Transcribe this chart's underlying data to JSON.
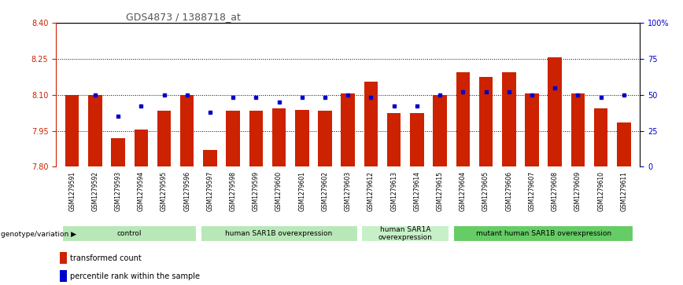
{
  "title": "GDS4873 / 1388718_at",
  "samples": [
    "GSM1279591",
    "GSM1279592",
    "GSM1279593",
    "GSM1279594",
    "GSM1279595",
    "GSM1279596",
    "GSM1279597",
    "GSM1279598",
    "GSM1279599",
    "GSM1279600",
    "GSM1279601",
    "GSM1279602",
    "GSM1279603",
    "GSM1279612",
    "GSM1279613",
    "GSM1279614",
    "GSM1279615",
    "GSM1279604",
    "GSM1279605",
    "GSM1279606",
    "GSM1279607",
    "GSM1279608",
    "GSM1279609",
    "GSM1279610",
    "GSM1279611"
  ],
  "bar_values": [
    8.1,
    8.1,
    7.92,
    7.955,
    8.035,
    8.1,
    7.87,
    8.035,
    8.035,
    8.045,
    8.038,
    8.035,
    8.105,
    8.155,
    8.025,
    8.025,
    8.1,
    8.195,
    8.175,
    8.195,
    8.105,
    8.255,
    8.105,
    8.045,
    7.985
  ],
  "percentile_values": [
    null,
    50,
    35,
    42,
    50,
    50,
    38,
    48,
    48,
    45,
    48,
    48,
    50,
    48,
    42,
    42,
    50,
    52,
    52,
    52,
    50,
    55,
    50,
    48,
    50
  ],
  "groups": [
    {
      "label": "control",
      "start": 0,
      "end": 5
    },
    {
      "label": "human SAR1B overexpression",
      "start": 6,
      "end": 12
    },
    {
      "label": "human SAR1A\noverexpression",
      "start": 13,
      "end": 16
    },
    {
      "label": "mutant human SAR1B overexpression",
      "start": 17,
      "end": 24
    }
  ],
  "group_colors": [
    "#b8e8b8",
    "#b8e8b8",
    "#c8f0c8",
    "#66cc66"
  ],
  "ylim_left": [
    7.8,
    8.4
  ],
  "ylim_right": [
    0,
    100
  ],
  "yticks_left": [
    7.8,
    7.95,
    8.1,
    8.25,
    8.4
  ],
  "yticks_right": [
    0,
    25,
    50,
    75,
    100
  ],
  "ytick_right_labels": [
    "0",
    "25",
    "50",
    "75",
    "100%"
  ],
  "bar_color": "#CC2200",
  "dot_color": "#0000CC",
  "bg_color": "#FFFFFF",
  "xlabel_bg": "#D0D0D0",
  "title_color": "#555555",
  "bar_width": 0.6,
  "legend_label_bar": "transformed count",
  "legend_label_dot": "percentile rank within the sample",
  "genotype_label": "genotype/variation"
}
